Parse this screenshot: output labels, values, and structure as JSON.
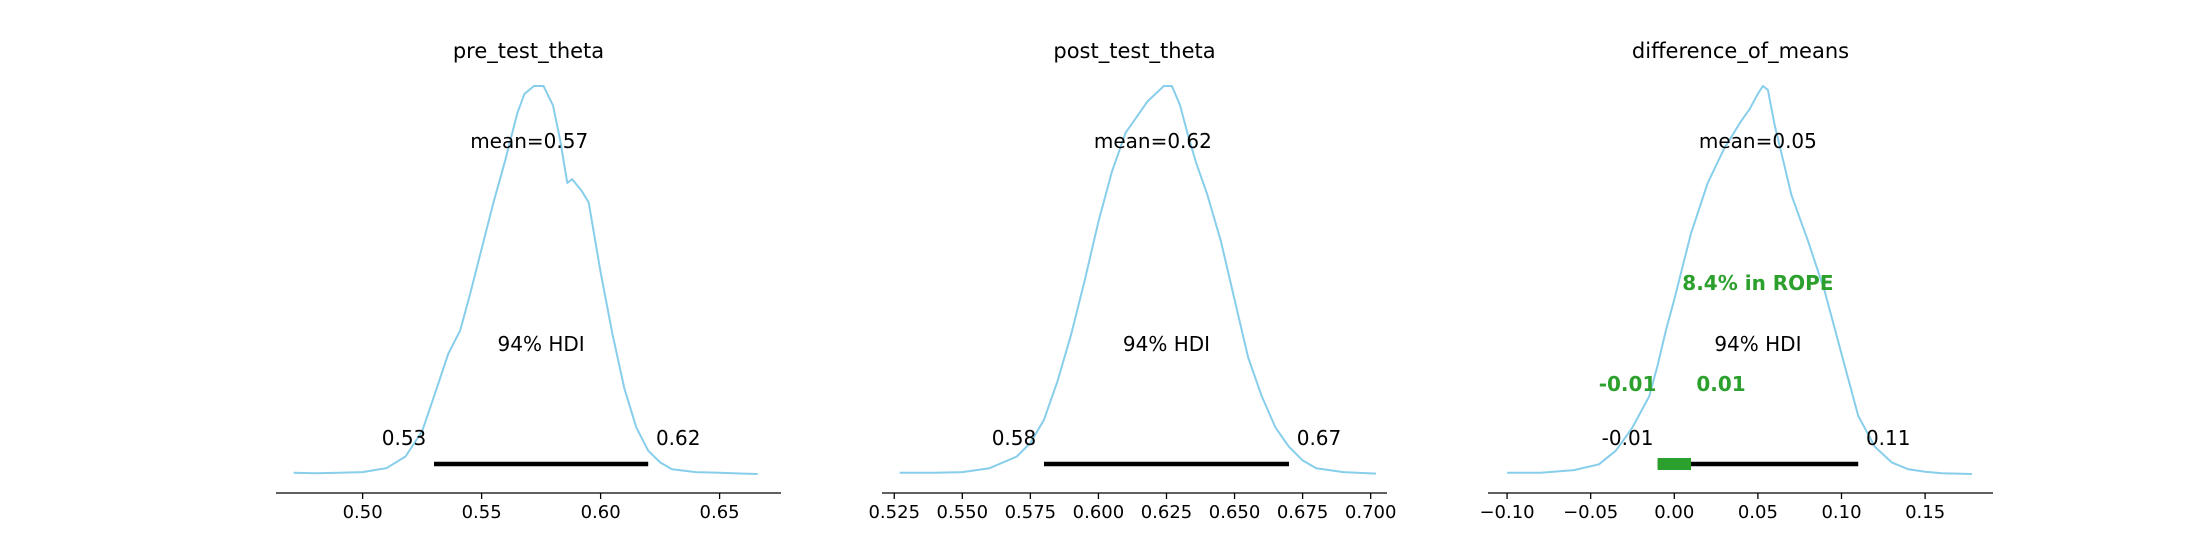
{
  "colors": {
    "density": "#87ceeb",
    "hdi_bar": "#000000",
    "rope": "#2ca02c",
    "axis": "#000000"
  },
  "chart_data": [
    {
      "type": "line",
      "title": "pre_test_theta",
      "xlabel": "",
      "ylabel": "",
      "xlim": [
        0.4636,
        0.6758
      ],
      "x_ticks": [
        0.5,
        0.55,
        0.6,
        0.65
      ],
      "x_tick_labels": [
        "0.50",
        "0.55",
        "0.60",
        "0.65"
      ],
      "y_axis_visible": false,
      "grid": false,
      "mean": 0.57,
      "mean_label": "mean=0.57",
      "hdi_prob": 0.94,
      "hdi_label": "94% HDI",
      "hdi": [
        0.53,
        0.62
      ],
      "hdi_bounds_labels": [
        "0.53",
        "0.62"
      ],
      "density": {
        "x": [
          0.471,
          0.48,
          0.49,
          0.5,
          0.51,
          0.518,
          0.525,
          0.53,
          0.536,
          0.541,
          0.545,
          0.55,
          0.555,
          0.56,
          0.565,
          0.568,
          0.572,
          0.576,
          0.58,
          0.583,
          0.586,
          0.588,
          0.592,
          0.595,
          0.6,
          0.605,
          0.61,
          0.615,
          0.62,
          0.625,
          0.63,
          0.64,
          0.65,
          0.66,
          0.666
        ],
        "y": [
          0.003,
          0.002,
          0.003,
          0.005,
          0.015,
          0.045,
          0.11,
          0.2,
          0.31,
          0.37,
          0.46,
          0.58,
          0.7,
          0.81,
          0.93,
          0.98,
          1.0,
          1.0,
          0.95,
          0.86,
          0.75,
          0.76,
          0.73,
          0.7,
          0.52,
          0.36,
          0.22,
          0.12,
          0.06,
          0.03,
          0.012,
          0.005,
          0.003,
          0.001,
          0.0
        ]
      }
    },
    {
      "type": "line",
      "title": "post_test_theta",
      "xlabel": "",
      "ylabel": "",
      "xlim": [
        0.5205,
        0.706
      ],
      "x_ticks": [
        0.525,
        0.55,
        0.575,
        0.6,
        0.625,
        0.65,
        0.675,
        0.7
      ],
      "x_tick_labels": [
        "0.525",
        "0.550",
        "0.575",
        "0.600",
        "0.625",
        "0.650",
        "0.675",
        "0.700"
      ],
      "y_axis_visible": false,
      "grid": false,
      "mean": 0.62,
      "mean_label": "mean=0.62",
      "hdi_prob": 0.94,
      "hdi_label": "94% HDI",
      "hdi": [
        0.58,
        0.67
      ],
      "hdi_bounds_labels": [
        "0.58",
        "0.67"
      ],
      "density": {
        "x": [
          0.527,
          0.54,
          0.55,
          0.56,
          0.57,
          0.575,
          0.58,
          0.585,
          0.59,
          0.595,
          0.6,
          0.605,
          0.61,
          0.615,
          0.618,
          0.621,
          0.624,
          0.627,
          0.63,
          0.633,
          0.636,
          0.64,
          0.645,
          0.65,
          0.655,
          0.66,
          0.665,
          0.67,
          0.675,
          0.68,
          0.69,
          0.702
        ],
        "y": [
          0.003,
          0.003,
          0.005,
          0.015,
          0.045,
          0.08,
          0.14,
          0.24,
          0.36,
          0.5,
          0.65,
          0.78,
          0.88,
          0.93,
          0.96,
          0.98,
          1.0,
          1.0,
          0.95,
          0.87,
          0.8,
          0.72,
          0.6,
          0.45,
          0.3,
          0.2,
          0.12,
          0.07,
          0.035,
          0.015,
          0.005,
          0.001
        ]
      }
    },
    {
      "type": "line",
      "title": "difference_of_means",
      "xlabel": "",
      "ylabel": "",
      "xlim": [
        -0.1114,
        0.1906
      ],
      "x_ticks": [
        -0.1,
        -0.05,
        0.0,
        0.05,
        0.1,
        0.15
      ],
      "x_tick_labels": [
        "−0.10",
        "−0.05",
        "0.00",
        "0.05",
        "0.10",
        "0.15"
      ],
      "y_axis_visible": false,
      "grid": false,
      "mean": 0.05,
      "mean_label": "mean=0.05",
      "hdi_prob": 0.94,
      "hdi_label": "94% HDI",
      "hdi": [
        -0.01,
        0.11
      ],
      "hdi_bounds_labels": [
        "-0.01",
        "0.11"
      ],
      "rope": [
        -0.01,
        0.01
      ],
      "rope_bounds_labels": [
        "-0.01",
        "0.01"
      ],
      "rope_label": "8.4% in ROPE",
      "density": {
        "x": [
          -0.1,
          -0.08,
          -0.06,
          -0.045,
          -0.035,
          -0.025,
          -0.015,
          -0.01,
          -0.005,
          0.0,
          0.01,
          0.02,
          0.03,
          0.04,
          0.045,
          0.05,
          0.053,
          0.056,
          0.06,
          0.065,
          0.07,
          0.08,
          0.09,
          0.1,
          0.11,
          0.12,
          0.13,
          0.14,
          0.15,
          0.16,
          0.178
        ],
        "y": [
          0.003,
          0.003,
          0.01,
          0.025,
          0.06,
          0.12,
          0.2,
          0.28,
          0.37,
          0.45,
          0.62,
          0.75,
          0.84,
          0.91,
          0.94,
          0.98,
          1.0,
          0.99,
          0.9,
          0.81,
          0.72,
          0.6,
          0.47,
          0.31,
          0.15,
          0.07,
          0.03,
          0.012,
          0.006,
          0.002,
          0.0
        ]
      }
    }
  ]
}
